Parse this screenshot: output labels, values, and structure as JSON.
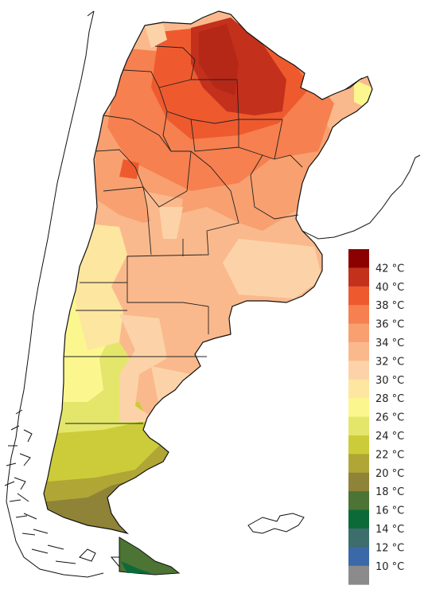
{
  "legend": {
    "items": [
      {
        "label": "42 °C",
        "color": "#8b0000"
      },
      {
        "label": "40 °C",
        "color": "#c3301c"
      },
      {
        "label": "38 °C",
        "color": "#ee5a2e"
      },
      {
        "label": "36 °C",
        "color": "#f6804f"
      },
      {
        "label": "34 °C",
        "color": "#f8a070"
      },
      {
        "label": "32 °C",
        "color": "#fab98c"
      },
      {
        "label": "30 °C",
        "color": "#fcd3a8"
      },
      {
        "label": "28 °C",
        "color": "#fde6a0"
      },
      {
        "label": "26 °C",
        "color": "#fbf78e"
      },
      {
        "label": "24 °C",
        "color": "#e3e66b"
      },
      {
        "label": "22 °C",
        "color": "#cccc3a"
      },
      {
        "label": "20 °C",
        "color": "#b0a636"
      },
      {
        "label": "18 °C",
        "color": "#8f8338"
      },
      {
        "label": "16 °C",
        "color": "#4c7434"
      },
      {
        "label": "14 °C",
        "color": "#0b6a38"
      },
      {
        "label": "12 °C",
        "color": "#3d6d6c"
      },
      {
        "label": "10 °C",
        "color": "#3b68a8"
      },
      {
        "label": "",
        "color": "#8b8b8b"
      }
    ]
  }
}
